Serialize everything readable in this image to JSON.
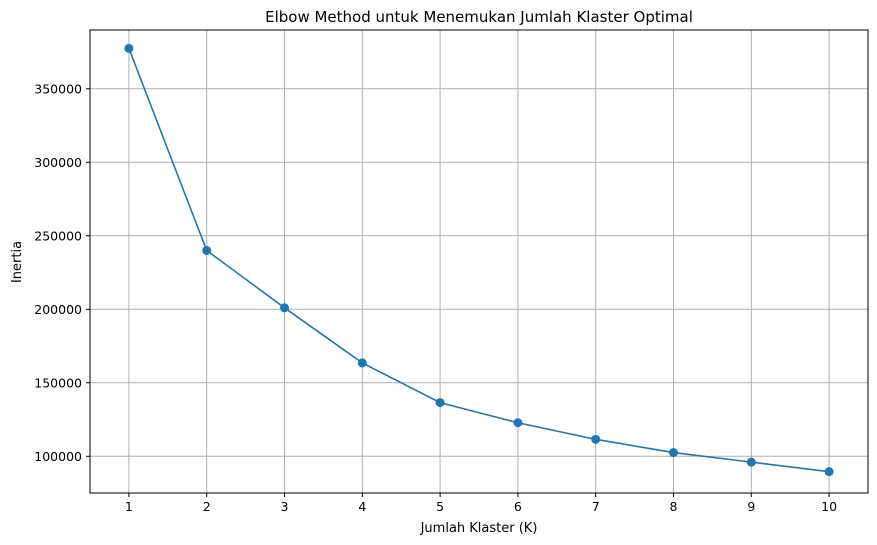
{
  "chart_data": {
    "type": "line",
    "title": "Elbow Method untuk Menemukan Jumlah Klaster Optimal",
    "xlabel": "Jumlah Klaster (K)",
    "ylabel": "Inertia",
    "x": [
      1,
      2,
      3,
      4,
      5,
      6,
      7,
      8,
      9,
      10
    ],
    "series": [
      {
        "values": [
          377500,
          240000,
          201000,
          163500,
          136500,
          122800,
          111500,
          102500,
          96000,
          89500
        ],
        "color": "#1f77b4",
        "marker": "circle"
      }
    ],
    "xlim": [
      0.5,
      10.5
    ],
    "ylim": [
      75000,
      390000
    ],
    "x_ticks": [
      1,
      2,
      3,
      4,
      5,
      6,
      7,
      8,
      9,
      10
    ],
    "y_ticks": [
      100000,
      150000,
      200000,
      250000,
      300000,
      350000
    ],
    "x_tick_labels": [
      "1",
      "2",
      "3",
      "4",
      "5",
      "6",
      "7",
      "8",
      "9",
      "10"
    ],
    "y_tick_labels": [
      "100000",
      "150000",
      "200000",
      "250000",
      "300000",
      "350000"
    ],
    "grid": true
  }
}
